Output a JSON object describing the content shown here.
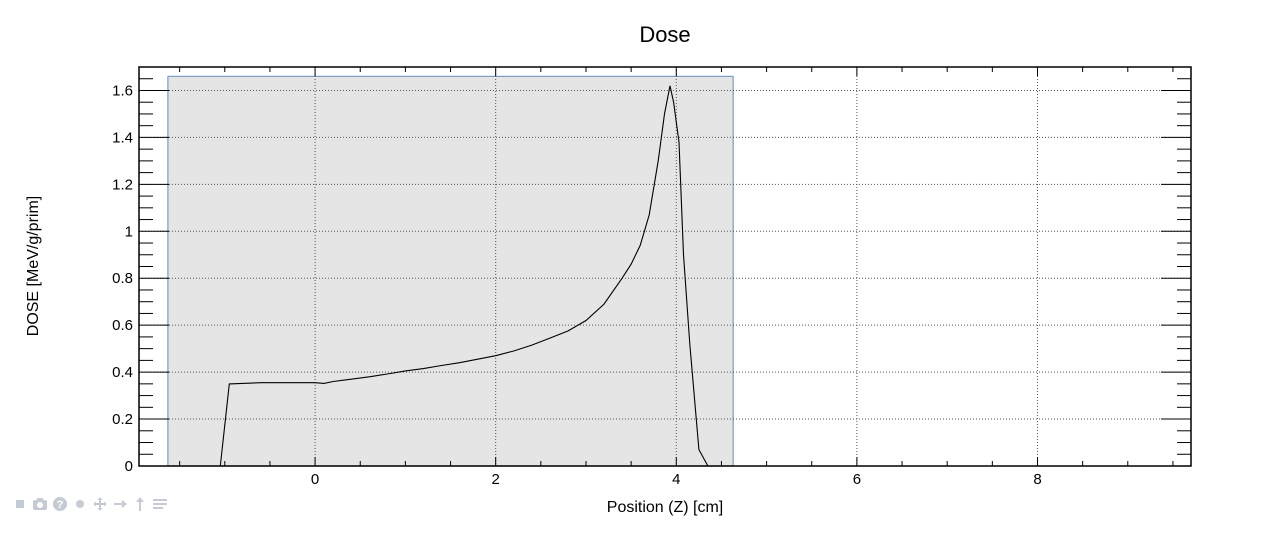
{
  "chart_data": {
    "type": "line",
    "title": "Dose",
    "xlabel": "Position (Z) [cm]",
    "ylabel": "DOSE [MeV/g/prim]",
    "xlim": [
      -1.95,
      9.7
    ],
    "ylim": [
      0,
      1.7
    ],
    "xticks": [
      0,
      2,
      4,
      6,
      8
    ],
    "yticks": [
      0,
      0.2,
      0.4,
      0.6,
      0.8,
      1,
      1.2,
      1.4,
      1.6
    ],
    "ytick_labels": [
      "0",
      "0.2",
      "0.4",
      "0.6",
      "0.8",
      "1",
      "1.2",
      "1.4",
      "1.6"
    ],
    "grid": true,
    "shaded_region": {
      "x": [
        -1.63,
        4.63
      ],
      "y": [
        0,
        1.66
      ],
      "fill": "#e5e5e5",
      "stroke": "#7a9cc6"
    },
    "series": [
      {
        "x": [
          -1.05,
          -0.95,
          -0.6,
          -0.2,
          0.0,
          0.1,
          0.2,
          0.4,
          0.6,
          0.8,
          1.0,
          1.2,
          1.4,
          1.6,
          1.8,
          2.0,
          2.2,
          2.4,
          2.6,
          2.8,
          3.0,
          3.2,
          3.4,
          3.5,
          3.6,
          3.7,
          3.8,
          3.87,
          3.93,
          3.97,
          4.03,
          4.08,
          4.15,
          4.25,
          4.35
        ],
        "y": [
          0.0,
          0.35,
          0.355,
          0.355,
          0.355,
          0.352,
          0.36,
          0.37,
          0.38,
          0.392,
          0.405,
          0.415,
          0.428,
          0.44,
          0.455,
          0.47,
          0.49,
          0.515,
          0.545,
          0.575,
          0.62,
          0.69,
          0.8,
          0.86,
          0.94,
          1.07,
          1.3,
          1.5,
          1.62,
          1.55,
          1.38,
          0.9,
          0.52,
          0.07,
          0.0
        ],
        "color": "#000000"
      }
    ]
  },
  "toolbar": {
    "icons": [
      "stop-icon",
      "camera-icon",
      "help-icon",
      "dot-icon",
      "move-icon",
      "arrow-right-icon",
      "arrow-up-icon",
      "menu-icon"
    ],
    "color": "#c5cbd3"
  }
}
